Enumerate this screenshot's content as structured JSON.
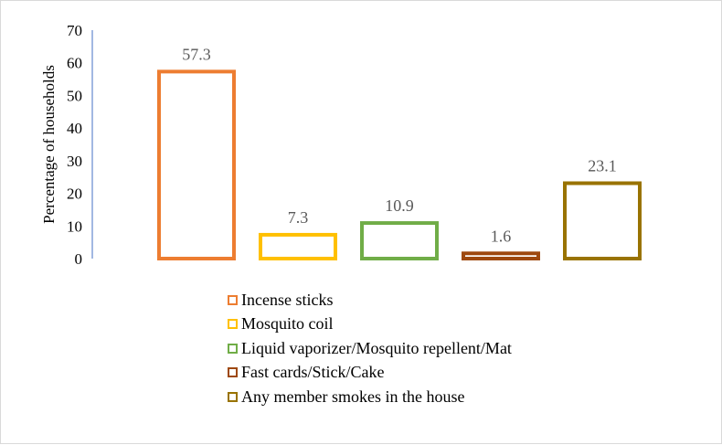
{
  "chart_data": {
    "type": "bar",
    "ylabel": "Percentage of households",
    "xlabel": "",
    "ylim": [
      0,
      70
    ],
    "yticks": [
      0,
      10,
      20,
      30,
      40,
      50,
      60,
      70
    ],
    "grid": false,
    "legend_position": "bottom",
    "fill": "none",
    "series": [
      {
        "name": "Incense sticks",
        "value": 57.3,
        "label": "57.3",
        "color": "#ED7D31"
      },
      {
        "name": "Mosquito coil",
        "value": 7.3,
        "label": "7.3",
        "color": "#FFC000"
      },
      {
        "name": "Liquid vaporizer/Mosquito repellent/Mat",
        "value": 10.9,
        "label": "10.9",
        "color": "#70AD47"
      },
      {
        "name": "Fast cards/Stick/Cake",
        "value": 1.6,
        "label": "1.6",
        "color": "#9E480E"
      },
      {
        "name": "Any member smokes in the house",
        "value": 23.1,
        "label": "23.1",
        "color": "#997300"
      }
    ],
    "axis_color": "#4472C4"
  }
}
